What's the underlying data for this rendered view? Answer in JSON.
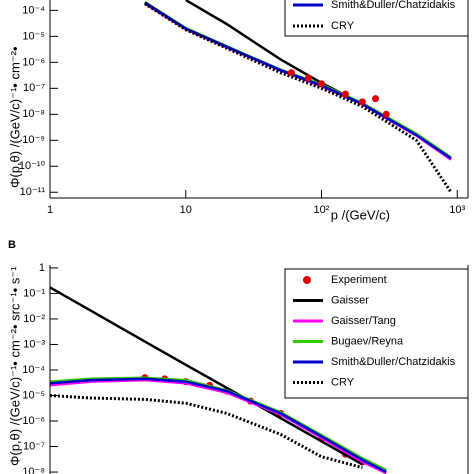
{
  "chart_data": [
    {
      "type": "line",
      "scale": "log",
      "ylabel": "Φ(p,θ) /(GeV/c)⁻¹• cm⁻²•",
      "xlabel": "p /(GeV/c)",
      "xlim": [
        1,
        1200
      ],
      "ylim": [
        6e-12,
        0.0003
      ],
      "xticks": [
        1,
        10,
        {
          "value": 100,
          "label": "10²"
        },
        {
          "value": 1000,
          "label": "10³"
        }
      ],
      "yticks": [
        {
          "value": 0.0001,
          "label": "10⁻⁴"
        },
        {
          "value": 1e-05,
          "label": "10⁻⁵"
        },
        {
          "value": 1e-06,
          "label": "10⁻⁶"
        },
        {
          "value": 1e-07,
          "label": "10⁻⁷"
        },
        {
          "value": 1e-08,
          "label": "10⁻⁸"
        },
        {
          "value": 1e-09,
          "label": "10⁻⁹"
        },
        {
          "value": 1e-10,
          "label": "10⁻¹⁰"
        },
        {
          "value": 1e-11,
          "label": "10⁻¹¹"
        }
      ],
      "legend": "upper right",
      "x": [
        5,
        10,
        20,
        50,
        100,
        200,
        500,
        900
      ],
      "series": [
        {
          "color": "#000000",
          "values": [
            null,
            0.00025,
            3e-05,
            1.3e-06,
            1.6e-07,
            2.5e-08,
            1.6e-09,
            2e-10
          ]
        },
        {
          "color": "#ff00ff",
          "values": [
            0.00018,
            1.9e-05,
            3.8e-06,
            4.8e-07,
            1.2e-07,
            2.4e-08,
            1.5e-09,
            1.8e-10
          ]
        },
        {
          "color": "#33cc00",
          "values": [
            0.00021,
            2.1e-05,
            4.2e-06,
            5.2e-07,
            1.4e-07,
            2.7e-08,
            1.8e-09,
            2.2e-10
          ]
        },
        {
          "name": "Smith&Duller/Chatzidakis",
          "color": "#0000cc",
          "values": [
            0.0002,
            2e-05,
            4e-06,
            5e-07,
            1.3e-07,
            2.5e-08,
            1.6e-09,
            2e-10
          ]
        },
        {
          "name": "CRY",
          "color": "#000000",
          "dash": "dotted",
          "values": [
            0.00018,
            1.8e-05,
            3.5e-06,
            4e-07,
            1e-07,
            2e-08,
            1e-09,
            1e-11
          ]
        },
        {
          "color": "#e00000",
          "marker": "dot",
          "x": [
            60,
            80,
            100,
            150,
            200,
            250,
            300
          ],
          "values": [
            4e-07,
            2.5e-07,
            1.5e-07,
            6e-08,
            3e-08,
            4e-08,
            1e-08
          ]
        }
      ]
    },
    {
      "type": "line",
      "scale": "log",
      "panel": "B",
      "ylabel": "Φ(p,θ) /(GeV/c)⁻¹• cm⁻²• src⁻¹• s⁻¹",
      "xlim": [
        1,
        1200
      ],
      "ylim": [
        7e-09,
        1.3
      ],
      "yticks": [
        1,
        {
          "value": 0.1,
          "label": "10⁻¹"
        },
        {
          "value": 0.01,
          "label": "10⁻²"
        },
        {
          "value": 0.001,
          "label": "10⁻³"
        },
        {
          "value": 0.0001,
          "label": "10⁻⁴"
        },
        {
          "value": 1e-05,
          "label": "10⁻⁵"
        },
        {
          "value": 1e-06,
          "label": "10⁻⁶"
        },
        {
          "value": 1e-07,
          "label": "10⁻⁷"
        },
        {
          "value": 1e-08,
          "label": "10⁻⁸"
        }
      ],
      "legend": "upper right",
      "x": [
        1,
        2,
        5,
        10,
        20,
        50,
        100,
        200,
        300
      ],
      "series": [
        {
          "name": "Experiment",
          "color": "#e00000",
          "marker": "dot",
          "x": [
            5,
            7,
            10,
            15,
            20,
            30,
            50,
            100,
            150,
            200
          ],
          "values": [
            5e-05,
            4.5e-05,
            3.5e-05,
            2.5e-05,
            1.5e-05,
            6e-06,
            2e-06,
            2e-07,
            5e-08,
            2.5e-08
          ]
        },
        {
          "name": "Gaisser",
          "color": "#000000",
          "values": [
            0.17,
            0.021,
            0.0013,
            0.00016,
            2e-05,
            1.3e-06,
            1.6e-07,
            2e-08,
            null
          ]
        },
        {
          "name": "Gaisser/Tang",
          "color": "#ff00ff",
          "values": [
            2.5e-05,
            3.5e-05,
            4e-05,
            3e-05,
            1.3e-05,
            1.8e-06,
            2.2e-07,
            2.5e-08,
            9e-09
          ]
        },
        {
          "name": "Bugaev/Reyna",
          "color": "#33cc00",
          "values": [
            3.5e-05,
            4.5e-05,
            5e-05,
            4e-05,
            1.6e-05,
            2.2e-06,
            2.8e-07,
            3.5e-08,
            1.2e-08
          ]
        },
        {
          "name": "Smith&Duller/Chatzidakis",
          "color": "#0000cc",
          "values": [
            3e-05,
            4e-05,
            4.5e-05,
            3.5e-05,
            1.5e-05,
            2e-06,
            2.5e-07,
            3e-08,
            1e-08
          ]
        },
        {
          "name": "CRY",
          "color": "#000000",
          "dash": "dotted",
          "values": [
            1e-05,
            8e-06,
            7e-06,
            5e-06,
            2e-06,
            3e-07,
            4e-08,
            1.5e-08,
            null
          ]
        }
      ]
    }
  ]
}
